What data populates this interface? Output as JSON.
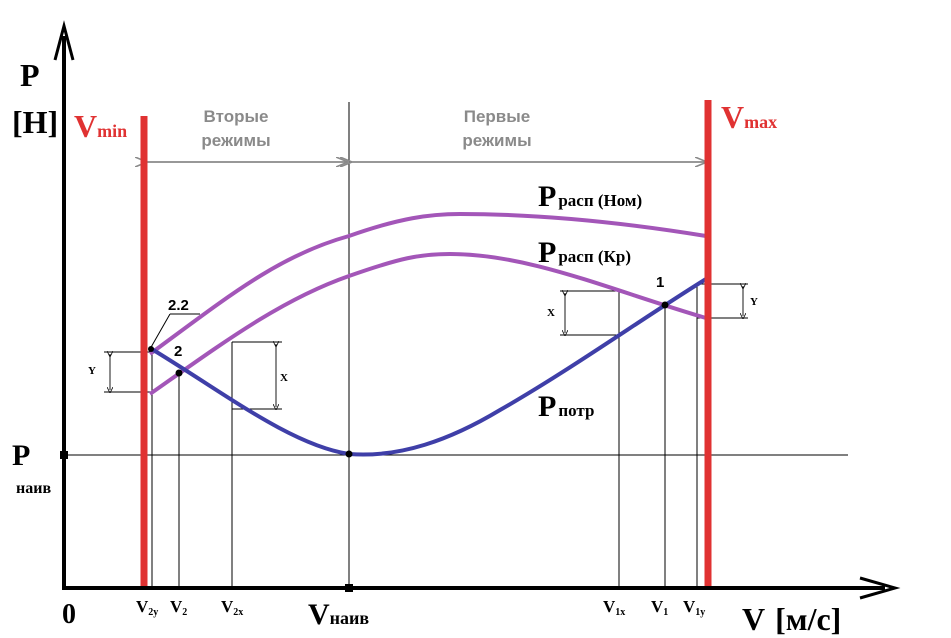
{
  "axes": {
    "y_main": "P",
    "y_unit": "[H]",
    "x_main": "V",
    "x_unit": "[м/с]",
    "origin": "0"
  },
  "limits": {
    "vmin_main": "V",
    "vmin_sub": "min",
    "vmax_main": "V",
    "vmax_sub": "max",
    "color": "#e03232"
  },
  "regions": {
    "second_line1": "Вторые",
    "second_line2": "режимы",
    "first_line1": "Первые",
    "first_line2": "режимы",
    "color": "#8a8a8a"
  },
  "curves": {
    "nom": {
      "main": "P",
      "sub": "расп (Ном)",
      "color": "#a356b8"
    },
    "kr": {
      "main": "P",
      "sub": "расп (Кр)",
      "color": "#a356b8"
    },
    "potr": {
      "main": "P",
      "sub": "потр",
      "color": "#3f3fa8"
    }
  },
  "p_naiv": {
    "main": "P",
    "sub": "наив"
  },
  "x_ticks": {
    "v2y": {
      "main": "V",
      "sub": "2y"
    },
    "v2": {
      "main": "V",
      "sub": "2"
    },
    "v2x": {
      "main": "V",
      "sub": "2x"
    },
    "vnaiv": {
      "main": "V",
      "sub": "наив"
    },
    "v1x": {
      "main": "V",
      "sub": "1x"
    },
    "v1": {
      "main": "V",
      "sub": "1"
    },
    "v1y": {
      "main": "V",
      "sub": "1y"
    }
  },
  "points": {
    "p1": "1",
    "p2": "2",
    "p22": "2.2"
  },
  "gaps": {
    "x": "X",
    "y": "Y"
  }
}
